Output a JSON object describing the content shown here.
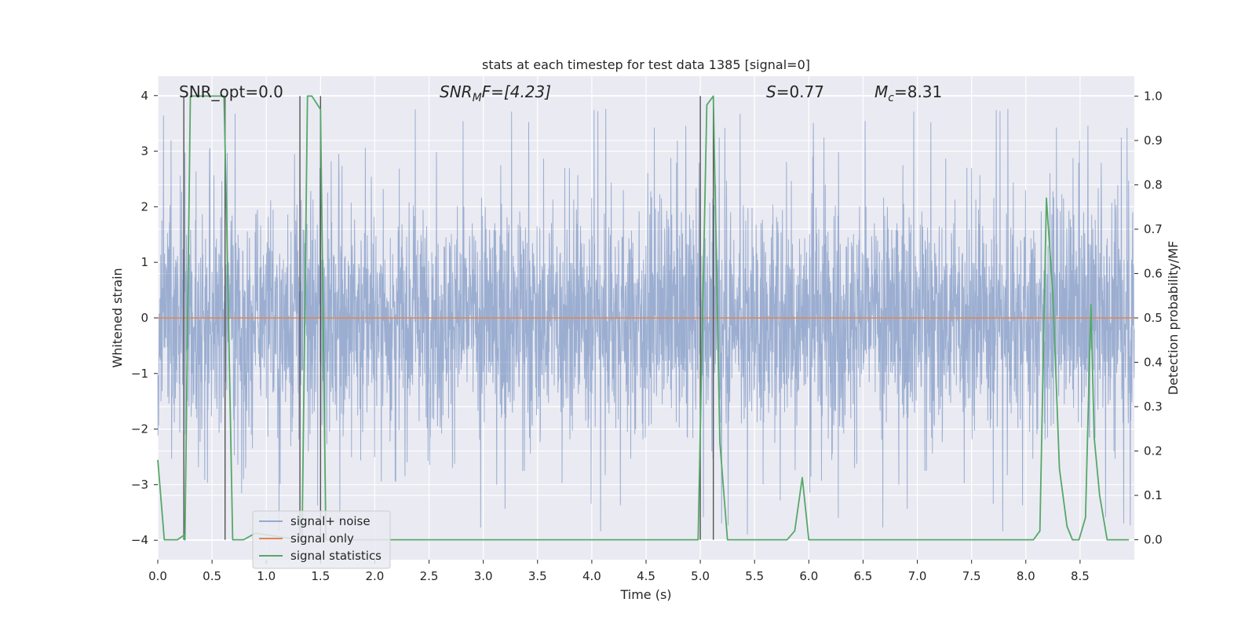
{
  "chart_data": {
    "type": "line",
    "title": "stats at each timestep for test data 1385 [signal=0]",
    "xlabel": "Time (s)",
    "ylabel": "Whitened strain",
    "y2label": "Detection probability/MF",
    "xlim": [
      0.0,
      9.0
    ],
    "ylim": [
      -4.35,
      4.35
    ],
    "y2lim": [
      -0.045,
      1.045
    ],
    "xticks": [
      0.0,
      0.5,
      1.0,
      1.5,
      2.0,
      2.5,
      3.0,
      3.5,
      4.0,
      4.5,
      5.0,
      5.5,
      6.0,
      6.5,
      7.0,
      7.5,
      8.0,
      8.5
    ],
    "xtick_labels": [
      "0.0",
      "0.5",
      "1.0",
      "1.5",
      "2.0",
      "2.5",
      "3.0",
      "3.5",
      "4.0",
      "4.5",
      "5.0",
      "5.5",
      "6.0",
      "6.5",
      "7.0",
      "7.5",
      "8.0",
      "8.5"
    ],
    "yticks": [
      4,
      3,
      2,
      1,
      0,
      -1,
      -2,
      -3,
      -4
    ],
    "ytick_labels": [
      "4",
      "3",
      "2",
      "1",
      "0",
      "−1",
      "−2",
      "−3",
      "−4"
    ],
    "y2ticks": [
      1.0,
      0.9,
      0.8,
      0.7,
      0.6,
      0.5,
      0.4,
      0.3,
      0.2,
      0.1,
      0.0
    ],
    "y2tick_labels": [
      "1.0",
      "0.9",
      "0.8",
      "0.7",
      "0.6",
      "0.5",
      "0.4",
      "0.3",
      "0.2",
      "0.1",
      "0.0"
    ],
    "annotations": {
      "snr_opt": "SNR_opt=0.0",
      "snr_mf_sym": "SNR",
      "snr_mf_sub": "M",
      "snr_mf_tail": "F=[4.23]",
      "s_sym": "S",
      "s_val": "=0.77",
      "mc_sym": "M",
      "mc_sub": "c",
      "mc_val": "=8.31"
    },
    "legend": {
      "placement": "lower-left",
      "entries": [
        {
          "label": "signal+ noise",
          "color": "#4c72b0"
        },
        {
          "label": "signal only",
          "color": "#dd8452"
        },
        {
          "label": "signal statistics",
          "color": "#55a868"
        }
      ]
    },
    "series": [
      {
        "name": "signal+ noise",
        "color": "#4c72b0",
        "opacity": 0.5,
        "duration": 9.0,
        "envelope_typical": 1.6,
        "envelope_peak": 4.0
      },
      {
        "name": "signal only",
        "color": "#dd8452",
        "constant": 0.0
      },
      {
        "name": "signal statistics",
        "color": "#55a868",
        "axis": "right",
        "x": [
          0.0,
          0.06,
          0.18,
          0.24,
          0.25,
          0.3,
          0.61,
          0.63,
          0.69,
          0.79,
          0.9,
          1.3,
          1.33,
          1.38,
          1.42,
          1.5,
          1.55,
          4.98,
          5.06,
          5.12,
          5.18,
          5.25,
          5.35,
          5.8,
          5.87,
          5.94,
          6.0,
          6.1,
          7.5,
          8.07,
          8.13,
          8.19,
          8.25,
          8.31,
          8.38,
          8.43,
          8.49,
          8.55,
          8.6,
          8.63,
          8.68,
          8.75,
          8.95
        ],
        "y": [
          0.18,
          0.0,
          0.0,
          0.01,
          0.0,
          1.0,
          1.0,
          0.78,
          0.0,
          0.0,
          0.015,
          0.0,
          0.0,
          1.0,
          1.0,
          0.97,
          0.0,
          0.0,
          0.98,
          1.0,
          0.22,
          0.0,
          0.0,
          0.0,
          0.02,
          0.14,
          0.0,
          0.0,
          0.0,
          0.0,
          0.02,
          0.77,
          0.55,
          0.16,
          0.03,
          0.0,
          0.0,
          0.05,
          0.53,
          0.23,
          0.1,
          0.0,
          0.0
        ]
      }
    ],
    "vlines": [
      0.24,
      0.62,
      1.31,
      1.5,
      5.0,
      5.12
    ]
  }
}
